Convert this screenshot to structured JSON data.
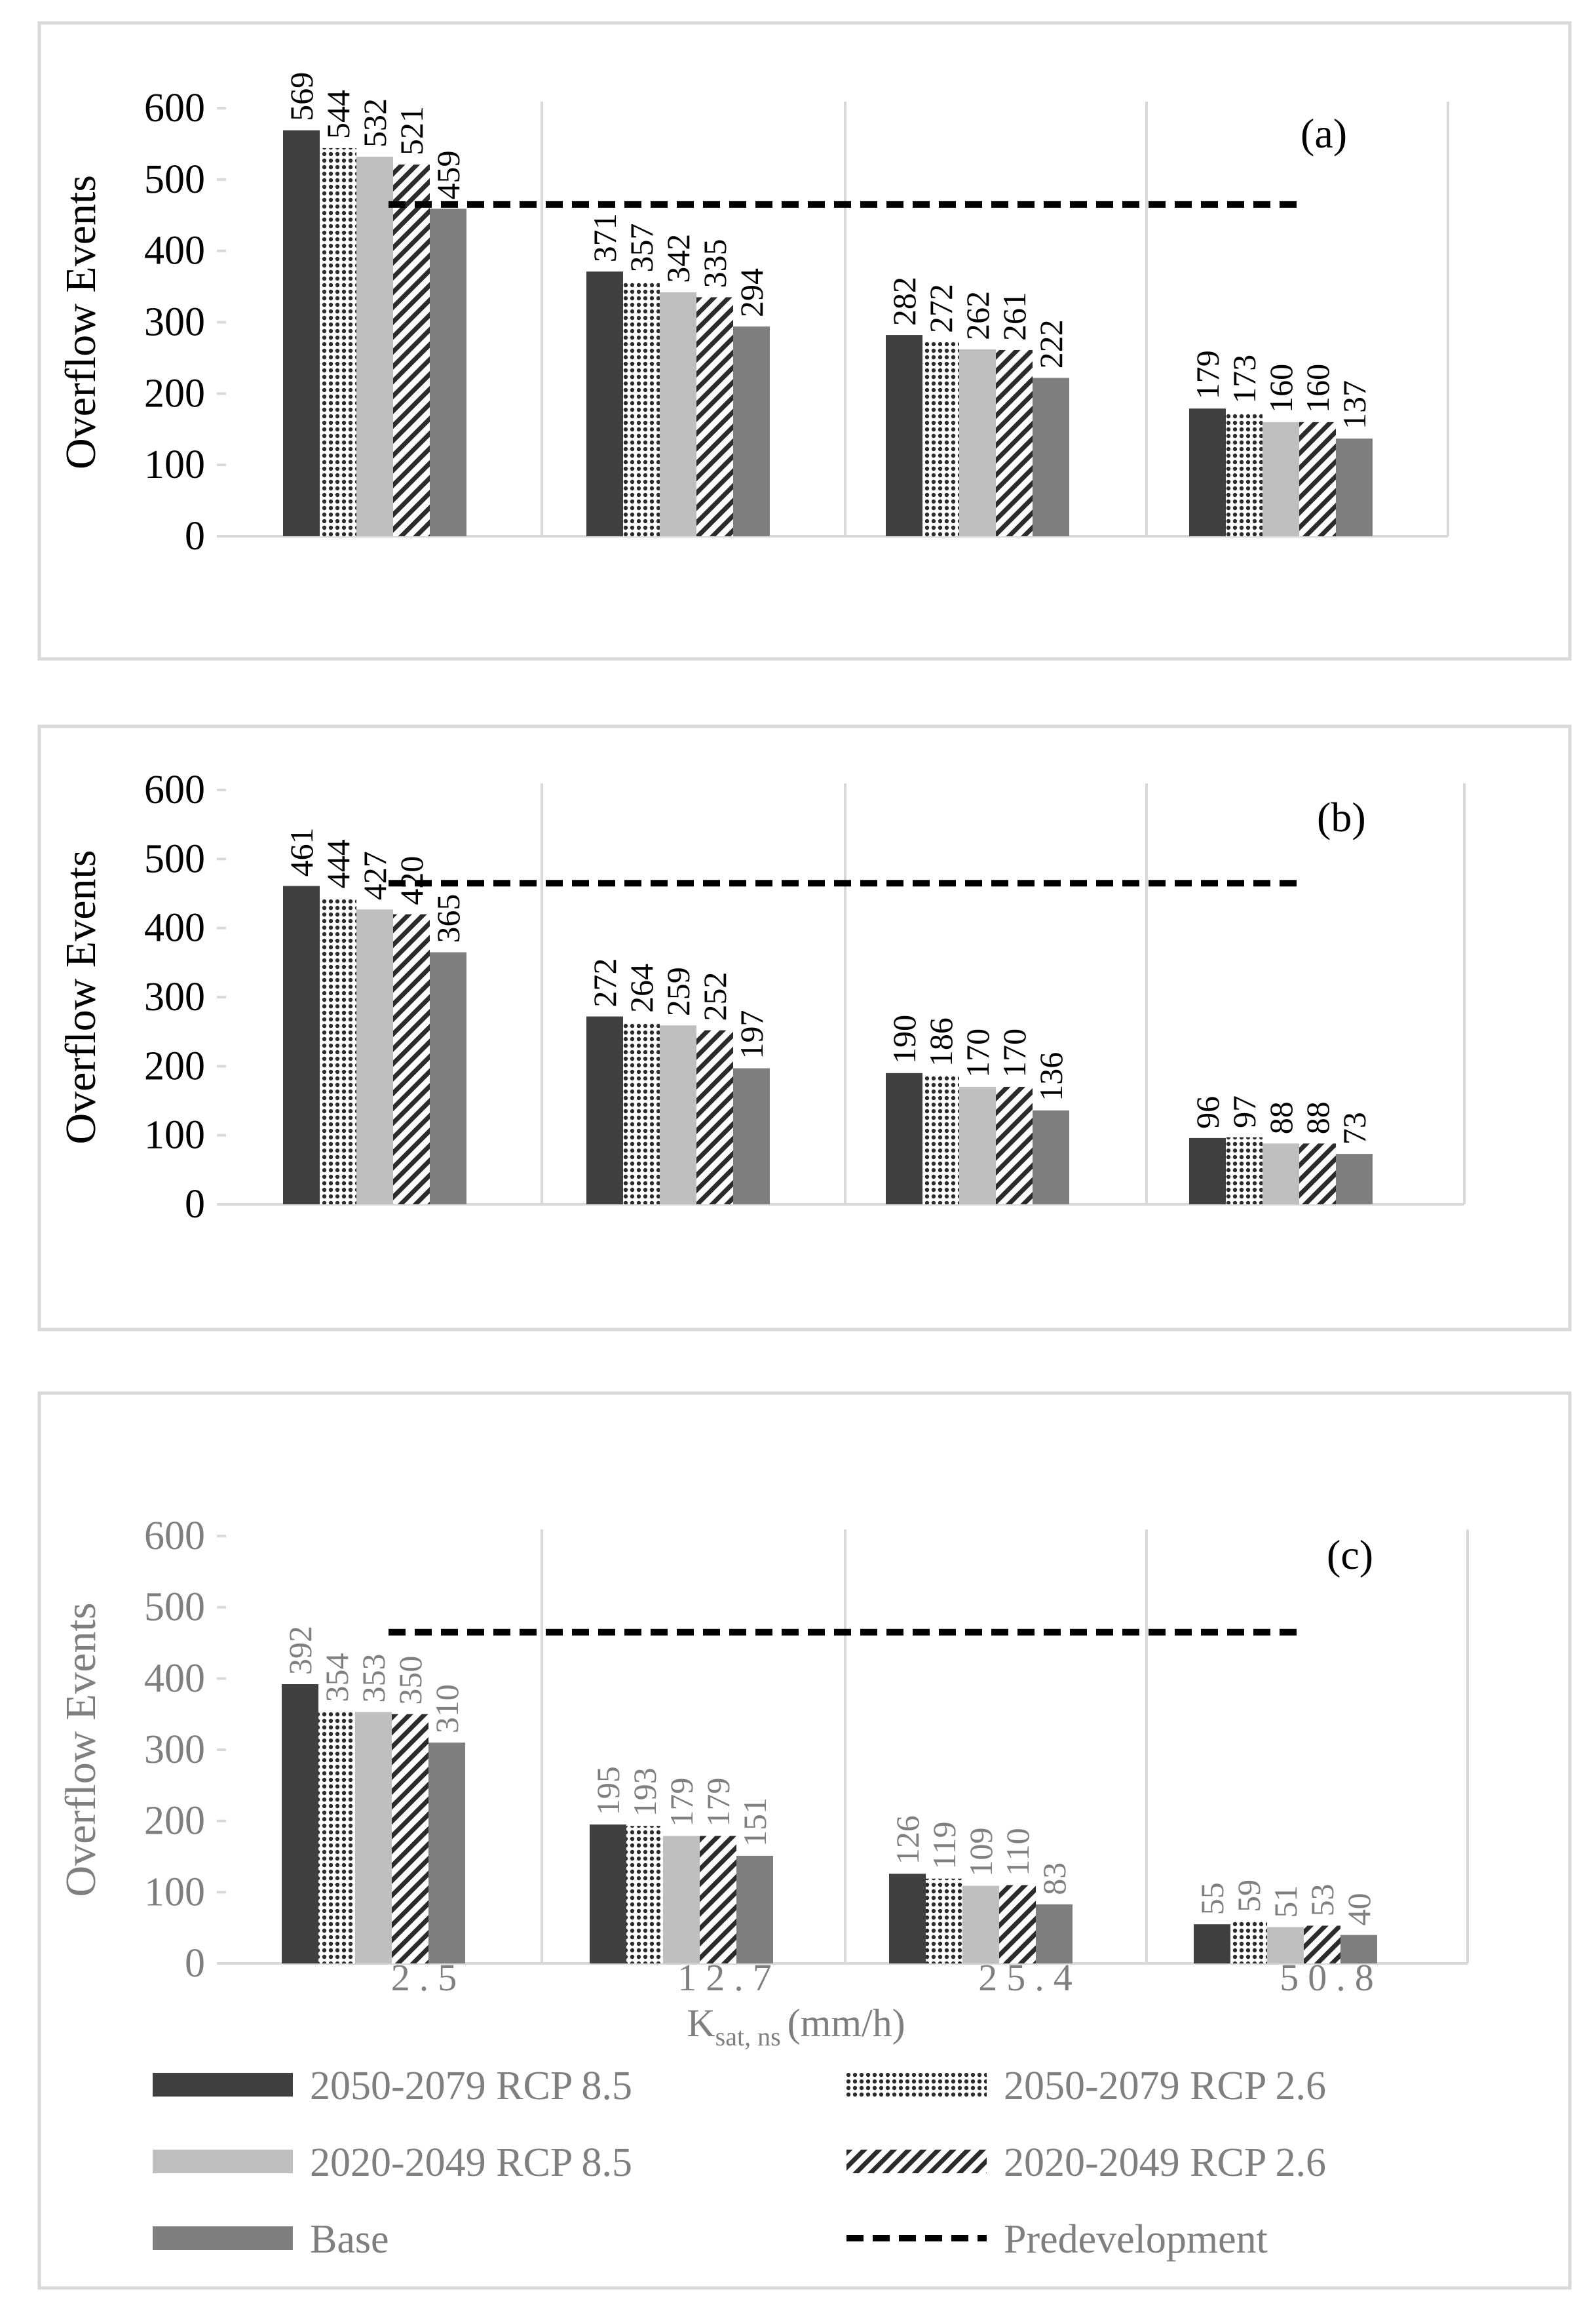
{
  "chart_data": {
    "type": "bar",
    "categories": [
      "2.5",
      "12.7",
      "25.4",
      "50.8"
    ],
    "x_label": {
      "main": "K",
      "sub": "sat, ns",
      "unit": "(mm/h)"
    },
    "ylabel": "Overflow Events",
    "ylim": [
      0,
      600
    ],
    "yticks": [
      "0",
      "100",
      "200",
      "300",
      "400",
      "500",
      "600"
    ],
    "series": [
      {
        "name": "2050-2079 RCP 8.5",
        "pattern": "solid-dark",
        "color": "#404040"
      },
      {
        "name": "2050-2079 RCP 2.6",
        "pattern": "dots",
        "color": "#404040"
      },
      {
        "name": "2020-2049 RCP 8.5",
        "pattern": "solid-light",
        "color": "#bfbfbf"
      },
      {
        "name": "2020-2049 RCP 2.6",
        "pattern": "diagonal",
        "color": "#404040"
      },
      {
        "name": "Base",
        "pattern": "solid-mid",
        "color": "#7f7f7f"
      }
    ],
    "reference_line": {
      "name": "Predevelopment",
      "value": 465
    },
    "panels": [
      {
        "label": "(a)",
        "values": [
          [
            569,
            544,
            532,
            521,
            459
          ],
          [
            371,
            357,
            342,
            335,
            294
          ],
          [
            282,
            272,
            262,
            261,
            222
          ],
          [
            179,
            173,
            160,
            160,
            137
          ]
        ],
        "labels": [
          [
            "569",
            "544",
            "532",
            "521",
            "459"
          ],
          [
            "371",
            "357",
            "342",
            "335",
            "294"
          ],
          [
            "282",
            "272",
            "262",
            "261",
            "222"
          ],
          [
            "179",
            "173",
            "160",
            "160",
            "137"
          ]
        ]
      },
      {
        "label": "(b)",
        "values": [
          [
            461,
            444,
            427,
            420,
            365
          ],
          [
            272,
            264,
            259,
            252,
            197
          ],
          [
            190,
            186,
            170,
            170,
            136
          ],
          [
            96,
            97,
            88,
            88,
            73
          ]
        ],
        "labels": [
          [
            "461",
            "444",
            "427",
            "420",
            "365"
          ],
          [
            "272",
            "264",
            "259",
            "252",
            "197"
          ],
          [
            "190",
            "186",
            "170",
            "170",
            "136"
          ],
          [
            "96",
            "97",
            "88",
            "88",
            "73"
          ]
        ]
      },
      {
        "label": "(c)",
        "values": [
          [
            392,
            354,
            353,
            350,
            310
          ],
          [
            195,
            193,
            179,
            179,
            151
          ],
          [
            126,
            119,
            109,
            110,
            83
          ],
          [
            55,
            59,
            51,
            53,
            40
          ]
        ],
        "labels": [
          [
            "392",
            "354",
            "353",
            "350",
            "310"
          ],
          [
            "195",
            "193",
            "179",
            "179",
            "151"
          ],
          [
            "126",
            "119",
            "109",
            "110",
            "83"
          ],
          [
            "55",
            "59",
            "51",
            "53",
            "40"
          ]
        ]
      }
    ]
  }
}
